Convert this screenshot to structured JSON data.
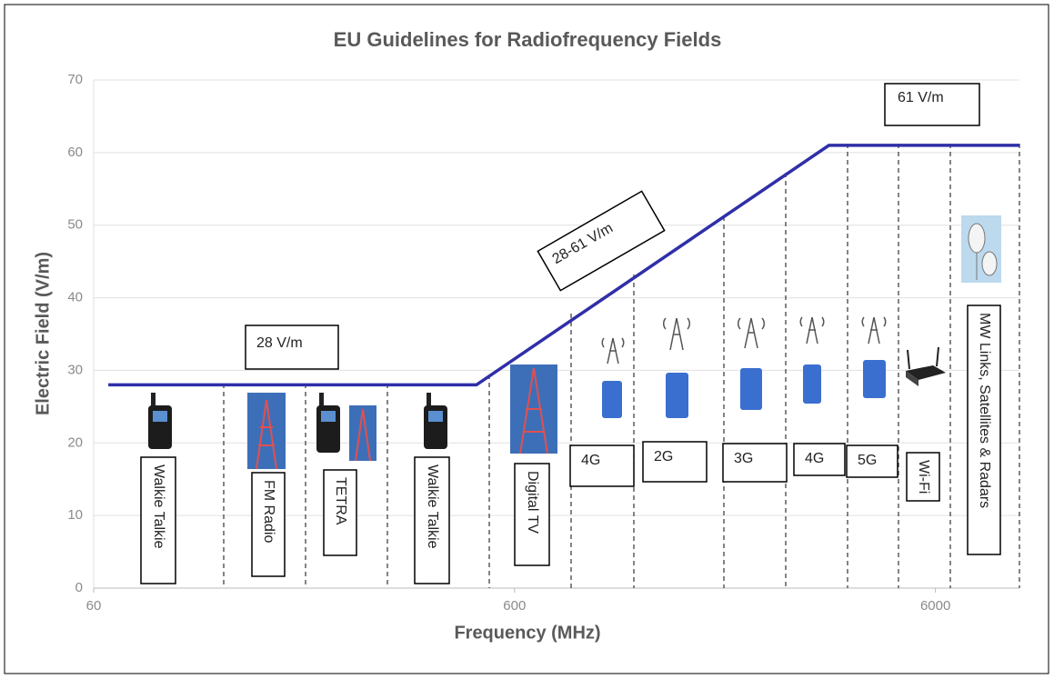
{
  "chart_data": {
    "type": "line",
    "title": "EU Guidelines for Radiofrequency Fields",
    "x_label": "Frequency (MHz)",
    "y_label": "Electric Field (V/m)",
    "x_scale": "log",
    "xlim": [
      60,
      9500
    ],
    "xticks": [
      60,
      600,
      6000
    ],
    "ylim": [
      0,
      70
    ],
    "yticks": [
      0,
      10,
      20,
      30,
      40,
      50,
      60,
      70
    ],
    "grid": true,
    "color": "#2f2fa8",
    "x": [
      65,
      487,
      3350,
      9500
    ],
    "values": [
      28,
      28,
      61,
      61
    ],
    "annotations": [
      "28 V/m",
      "28-61 V/m",
      "61 V/m"
    ],
    "band_labels": [
      "Walkie Talkie",
      "FM Radio",
      "TETRA",
      "Walkie Talkie",
      "Digital TV",
      "4G",
      "2G",
      "3G",
      "4G",
      "5G",
      "Wi-Fi",
      "MW Links, Satellites & Radars"
    ]
  }
}
